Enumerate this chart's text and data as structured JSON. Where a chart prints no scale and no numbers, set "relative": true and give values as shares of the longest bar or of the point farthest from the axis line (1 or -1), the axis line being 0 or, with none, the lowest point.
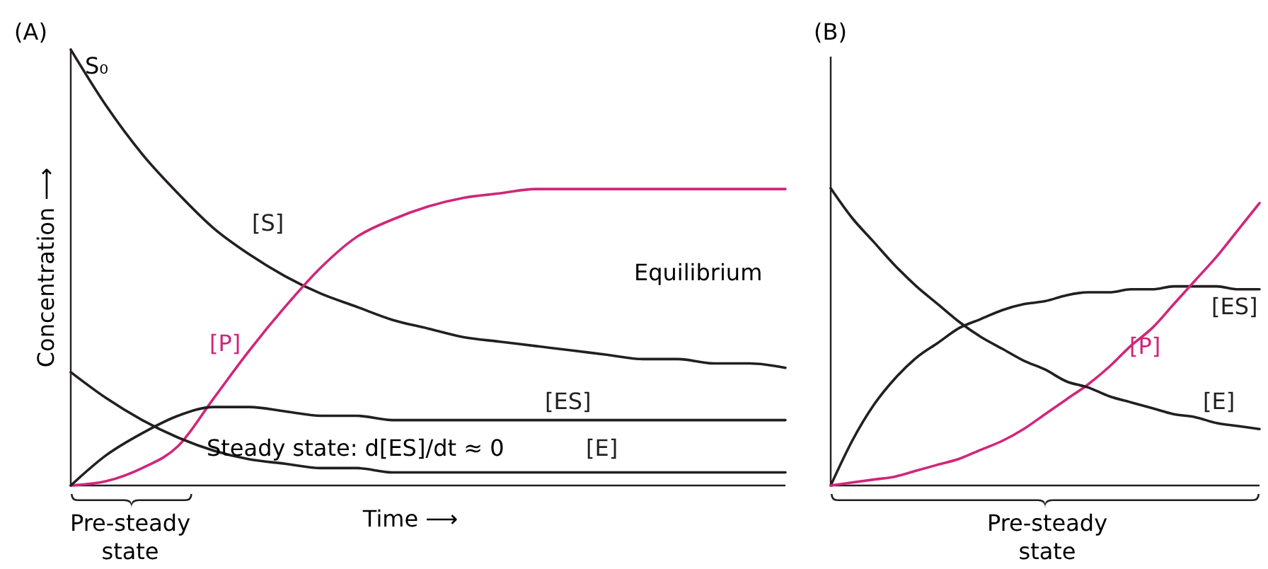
{
  "chart_data": [
    {
      "type": "line",
      "title": "(A)",
      "xlabel": "Time ⟶",
      "ylabel": "Concentration ⟶",
      "relative": true,
      "categories": [
        null,
        null,
        null,
        null,
        null,
        null,
        null,
        null,
        null,
        null,
        null,
        null,
        null,
        null,
        null,
        null,
        null,
        null,
        null,
        null,
        null
      ],
      "series": [
        {
          "name": "[S]",
          "color": "#231f20",
          "values": [
            1,
            0.87,
            0.76,
            0.67,
            0.59,
            0.53,
            0.48,
            0.44,
            0.41,
            0.38,
            0.36,
            0.34,
            0.33,
            0.32,
            0.31,
            0.3,
            0.29,
            0.29,
            0.28,
            0.28,
            0.27
          ]
        },
        {
          "name": "[P]",
          "color": "#d1267a",
          "values": [
            0,
            0.01,
            0.04,
            0.09,
            0.2,
            0.31,
            0.41,
            0.5,
            0.57,
            0.61,
            0.64,
            0.66,
            0.67,
            0.68,
            0.68,
            0.68,
            0.68,
            0.68,
            0.68,
            0.68,
            0.68
          ]
        },
        {
          "name": "[ES]",
          "color": "#231f20",
          "values": [
            0,
            0.07,
            0.12,
            0.16,
            0.18,
            0.18,
            0.17,
            0.16,
            0.16,
            0.15,
            0.15,
            0.15,
            0.15,
            0.15,
            0.15,
            0.15,
            0.15,
            0.15,
            0.15,
            0.15,
            0.15
          ]
        },
        {
          "name": "[E]",
          "color": "#231f20",
          "values": [
            0.26,
            0.2,
            0.15,
            0.11,
            0.08,
            0.06,
            0.05,
            0.04,
            0.04,
            0.03,
            0.03,
            0.03,
            0.03,
            0.03,
            0.03,
            0.03,
            0.03,
            0.03,
            0.03,
            0.03,
            0.03
          ]
        }
      ],
      "annotations": [
        "S₀",
        "Equilibrium",
        "Steady state: d[ES]/dt ≈ 0",
        "Pre-steady state"
      ]
    },
    {
      "type": "line",
      "title": "(B)",
      "relative": true,
      "categories": [
        null,
        null,
        null,
        null,
        null,
        null,
        null,
        null,
        null,
        null,
        null,
        null,
        null,
        null,
        null,
        null,
        null,
        null,
        null,
        null,
        null
      ],
      "series": [
        {
          "name": "[ES]",
          "color": "#231f20",
          "values": [
            0,
            0.15,
            0.27,
            0.36,
            0.43,
            0.48,
            0.53,
            0.56,
            0.59,
            0.61,
            0.62,
            0.64,
            0.65,
            0.65,
            0.66,
            0.66,
            0.67,
            0.67,
            0.67,
            0.66,
            0.66
          ]
        },
        {
          "name": "[P]",
          "color": "#d1267a",
          "values": [
            0,
            0.01,
            0.02,
            0.03,
            0.05,
            0.07,
            0.09,
            0.12,
            0.15,
            0.19,
            0.24,
            0.29,
            0.34,
            0.4,
            0.47,
            0.53,
            0.61,
            0.69,
            0.77,
            0.86,
            0.95
          ]
        },
        {
          "name": "[E]",
          "color": "#231f20",
          "values": [
            1,
            0.9,
            0.82,
            0.74,
            0.67,
            0.61,
            0.55,
            0.5,
            0.46,
            0.42,
            0.39,
            0.35,
            0.33,
            0.3,
            0.28,
            0.26,
            0.24,
            0.23,
            0.21,
            0.2,
            0.19
          ]
        }
      ],
      "annotations": [
        "Pre-steady state"
      ]
    }
  ]
}
